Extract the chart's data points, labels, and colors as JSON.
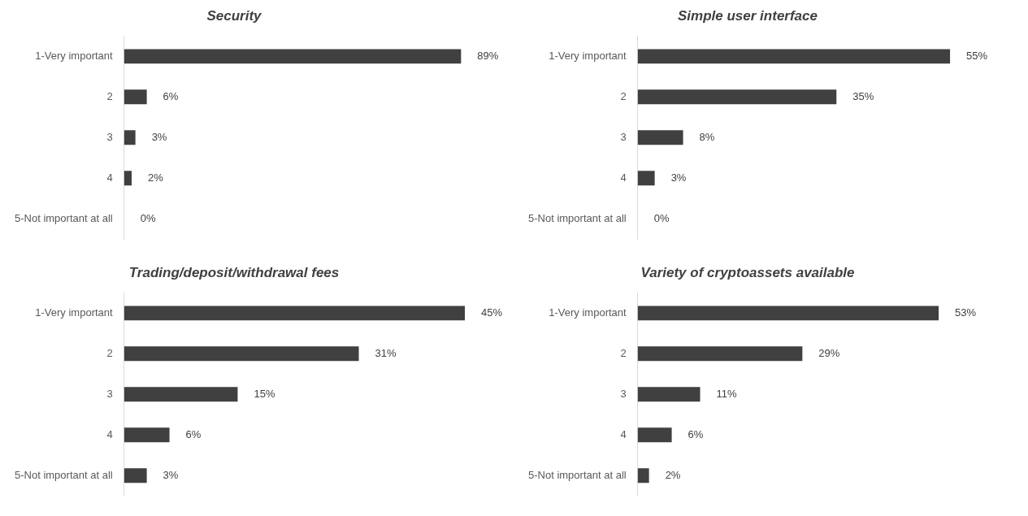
{
  "chart_data": [
    {
      "type": "bar",
      "orientation": "horizontal",
      "title": "Security",
      "categories": [
        "1-Very important",
        "2",
        "3",
        "4",
        "5-Not important at all"
      ],
      "values": [
        89,
        6,
        3,
        2,
        0
      ],
      "value_labels": [
        "89%",
        "6%",
        "3%",
        "2%",
        "0%"
      ],
      "color": "#404040"
    },
    {
      "type": "bar",
      "orientation": "horizontal",
      "title": "Simple user interface",
      "categories": [
        "1-Very important",
        "2",
        "3",
        "4",
        "5-Not important at all"
      ],
      "values": [
        55,
        35,
        8,
        3,
        0
      ],
      "value_labels": [
        "55%",
        "35%",
        "8%",
        "3%",
        "0%"
      ],
      "color": "#404040"
    },
    {
      "type": "bar",
      "orientation": "horizontal",
      "title": "Trading/deposit/withdrawal fees",
      "categories": [
        "1-Very important",
        "2",
        "3",
        "4",
        "5-Not important at all"
      ],
      "values": [
        45,
        31,
        15,
        6,
        3
      ],
      "value_labels": [
        "45%",
        "31%",
        "15%",
        "6%",
        "3%"
      ],
      "color": "#404040"
    },
    {
      "type": "bar",
      "orientation": "horizontal",
      "title": "Variety of cryptoassets available",
      "categories": [
        "1-Very important",
        "2",
        "3",
        "4",
        "5-Not important at all"
      ],
      "values": [
        53,
        29,
        11,
        6,
        2
      ],
      "value_labels": [
        "53%",
        "29%",
        "11%",
        "6%",
        "2%"
      ],
      "color": "#404040"
    }
  ]
}
